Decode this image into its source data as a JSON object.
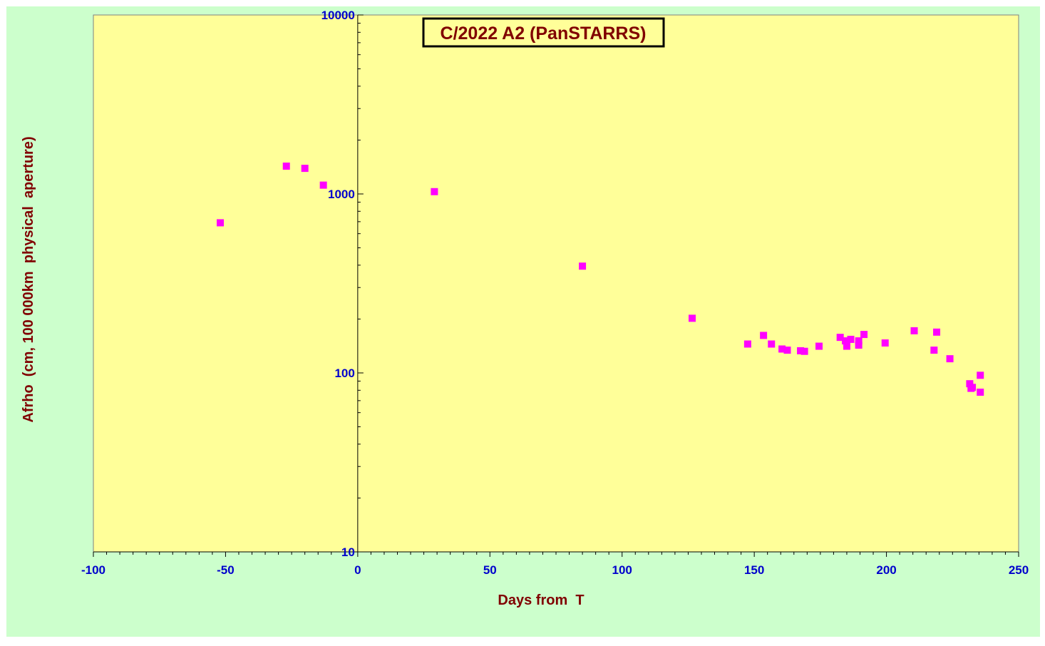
{
  "chart_data": {
    "type": "scatter",
    "title": "C/2022 A2 (PanSTARRS)",
    "xlabel": "Days from  T",
    "ylabel": "Afrho  (cm, 100 000km  physical  aperture)",
    "xlim": [
      -100,
      250
    ],
    "ylim": [
      10,
      10000
    ],
    "y_scale": "log",
    "x_ticks": [
      "-100",
      "-50",
      "0",
      "50",
      "100",
      "150",
      "200",
      "250"
    ],
    "y_ticks": [
      "10",
      "100",
      "1000",
      "10000"
    ],
    "grid": false,
    "colors": {
      "background": "#ccffcc",
      "plot_area": "#ffff99",
      "marker": "#ff00ff",
      "tick_label": "#0000cc",
      "axis_title": "#800000"
    },
    "series": [
      {
        "x": [
          -52,
          -27,
          -20,
          -13,
          29,
          85,
          126.5,
          147.5,
          153.5,
          156.5,
          160.5,
          162.5,
          167.5,
          169,
          174.5,
          182.5,
          184.5,
          185,
          186.5,
          189.5,
          189.5,
          191.5,
          199.5,
          210.5,
          218,
          219,
          224,
          231.5,
          232.5,
          232,
          235.5,
          235.5
        ],
        "y": [
          690,
          1430,
          1390,
          1120,
          1030,
          395,
          202,
          145,
          162,
          145,
          136,
          134,
          133,
          132,
          141,
          158,
          151,
          141,
          154,
          151,
          143,
          164,
          147,
          172,
          134,
          169,
          120,
          87,
          83,
          82,
          97,
          78
        ]
      }
    ]
  }
}
